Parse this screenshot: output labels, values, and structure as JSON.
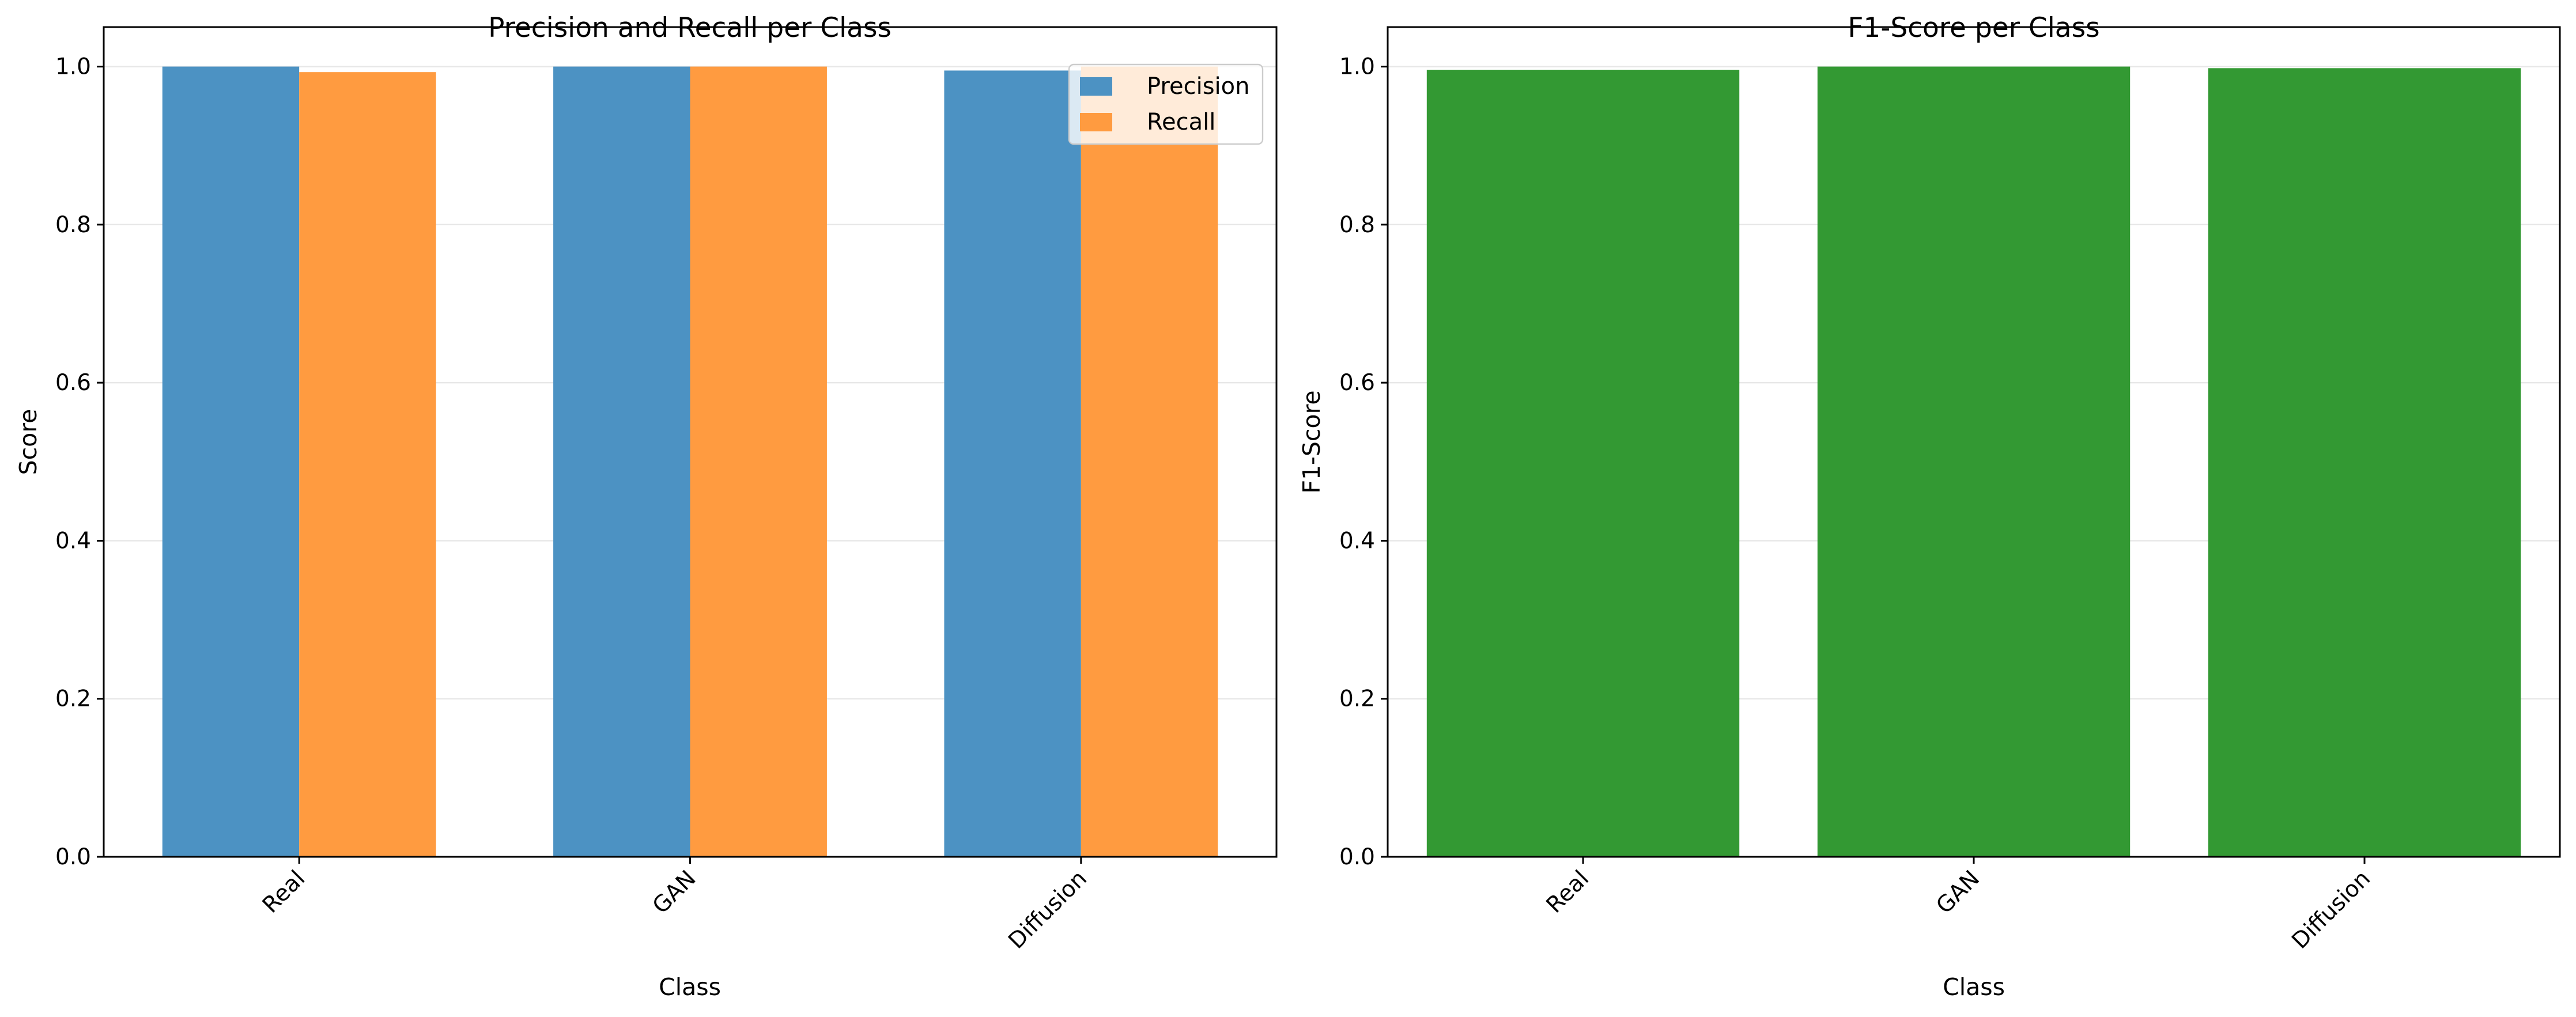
{
  "colors": {
    "precision": "#4c92c3",
    "recall": "#ff9b40",
    "f1": "#339933"
  },
  "chart_data": [
    {
      "type": "bar",
      "title": "Precision and Recall per Class",
      "xlabel": "Class",
      "ylabel": "Score",
      "categories": [
        "Real",
        "GAN",
        "Diffusion"
      ],
      "series": [
        {
          "name": "Precision",
          "values": [
            1.0,
            1.0,
            0.995
          ]
        },
        {
          "name": "Recall",
          "values": [
            0.993,
            1.0,
            1.0
          ]
        }
      ],
      "ylim": [
        0,
        1.05
      ],
      "yticks": [
        "0.0",
        "0.2",
        "0.4",
        "0.6",
        "0.8",
        "1.0"
      ],
      "grid": true,
      "legend": "top-right"
    },
    {
      "type": "bar",
      "title": "F1-Score per Class",
      "xlabel": "Class",
      "ylabel": "F1-Score",
      "categories": [
        "Real",
        "GAN",
        "Diffusion"
      ],
      "series": [
        {
          "name": "F1-Score",
          "values": [
            0.996,
            1.0,
            0.998
          ]
        }
      ],
      "ylim": [
        0,
        1.05
      ],
      "yticks": [
        "0.0",
        "0.2",
        "0.4",
        "0.6",
        "0.8",
        "1.0"
      ],
      "grid": true
    }
  ]
}
